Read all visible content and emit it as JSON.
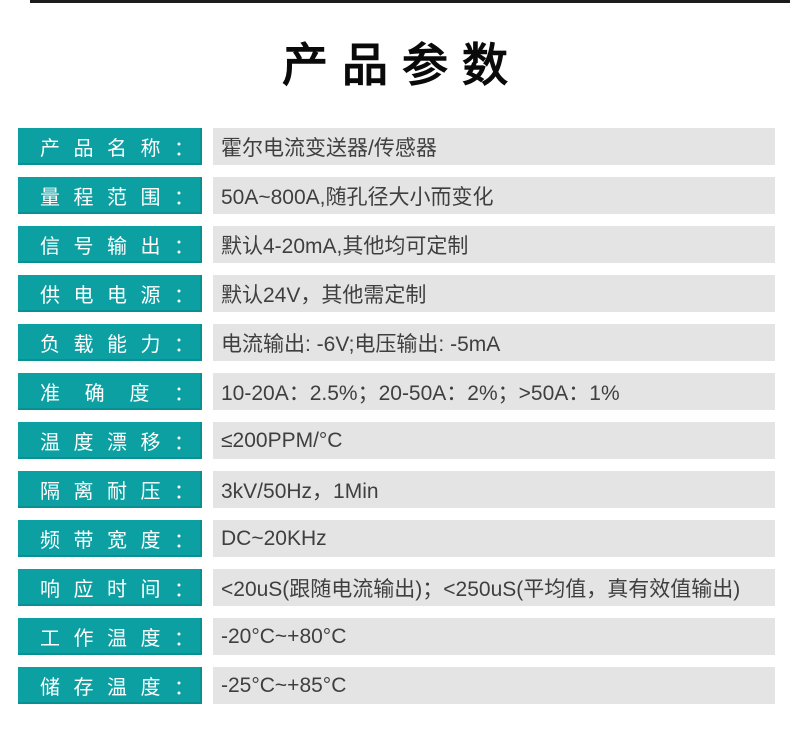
{
  "page": {
    "title": "产品参数"
  },
  "colors": {
    "label_bg": "#0ca0a3",
    "label_text": "#ffffff",
    "value_bg": "#e5e4e4",
    "value_text": "#3f3f3f",
    "title_text": "#0a0a0a",
    "top_strip": "#1c1c1c"
  },
  "table": {
    "rows": [
      {
        "label": "产品名称：",
        "value": "霍尔电流变送器/传感器"
      },
      {
        "label": "量程范围：",
        "value": "50A~800A,随孔径大小而变化"
      },
      {
        "label": "信号输出：",
        "value": "默认4-20mA,其他均可定制"
      },
      {
        "label": "供电电源：",
        "value": "默认24V，其他需定制"
      },
      {
        "label": "负载能力：",
        "value": "电流输出: -6V;电压输出: -5mA"
      },
      {
        "label": "准确度：",
        "value": "10-20A：2.5%；20-50A：2%；>50A：1%"
      },
      {
        "label": "温度漂移：",
        "value": "≤200PPM/°C"
      },
      {
        "label": "隔离耐压：",
        "value": "3kV/50Hz，1Min"
      },
      {
        "label": "频带宽度：",
        "value": "DC~20KHz"
      },
      {
        "label": "响应时间：",
        "value": "<20uS(跟随电流输出)；<250uS(平均值，真有效值输出)"
      },
      {
        "label": "工作温度：",
        "value": "-20°C~+80°C"
      },
      {
        "label": "储存温度：",
        "value": "-25°C~+85°C"
      }
    ]
  }
}
